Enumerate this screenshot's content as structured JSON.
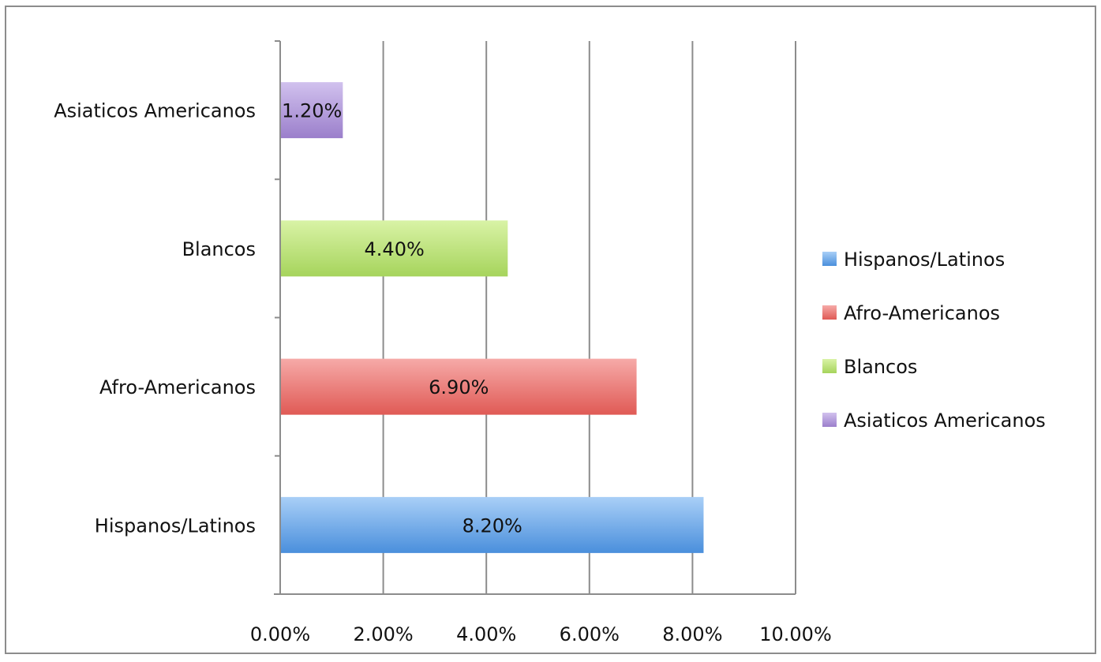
{
  "chart_data": {
    "type": "bar",
    "orientation": "horizontal",
    "categories": [
      "Hispanos/Latinos",
      "Afro-Americanos",
      "Blancos",
      "Asiaticos Americanos"
    ],
    "values": [
      8.2,
      6.9,
      4.4,
      1.2
    ],
    "value_labels": [
      "8.20%",
      "6.90%",
      "4.40%",
      "1.20%"
    ],
    "colors": [
      "#4a8fdc",
      "#e05a55",
      "#a6d45c",
      "#9b7fcb"
    ],
    "colors_light": [
      "#a9cff7",
      "#f6aaa8",
      "#d9f3a6",
      "#d1c1ee"
    ],
    "xlim": [
      0,
      10
    ],
    "x_ticks": [
      0,
      2,
      4,
      6,
      8,
      10
    ],
    "x_tick_labels": [
      "0.00%",
      "2.00%",
      "4.00%",
      "6.00%",
      "8.00%",
      "10.00%"
    ],
    "grid": "vertical",
    "legend_position": "right",
    "legend": [
      "Hispanos/Latinos",
      "Afro-Americanos",
      "Blancos",
      "Asiaticos Americanos"
    ],
    "title": "",
    "xlabel": "",
    "ylabel": ""
  }
}
